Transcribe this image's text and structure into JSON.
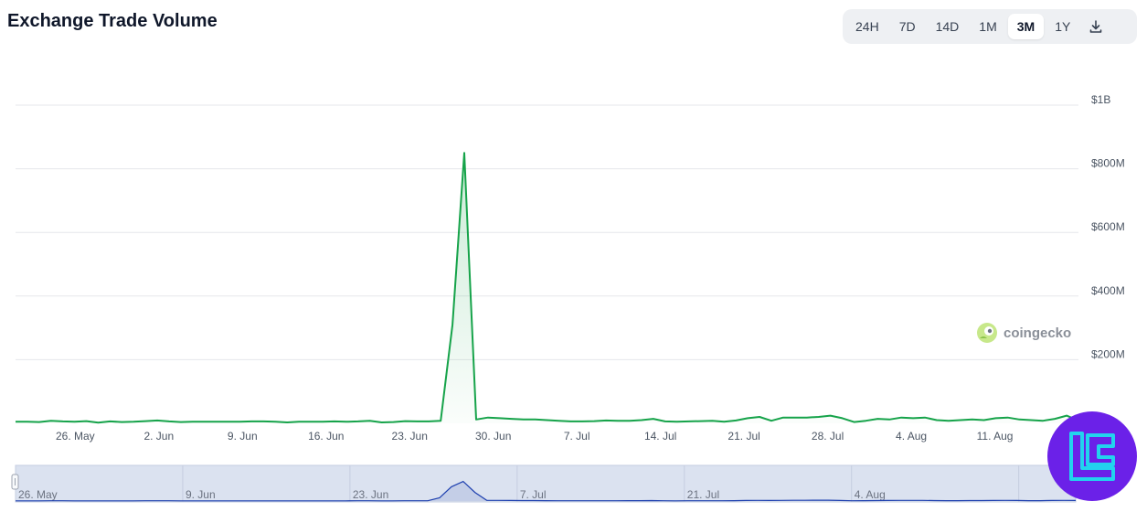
{
  "title": "Exchange Trade Volume",
  "range_buttons": [
    {
      "label": "24H",
      "active": false
    },
    {
      "label": "7D",
      "active": false
    },
    {
      "label": "14D",
      "active": false
    },
    {
      "label": "1M",
      "active": false
    },
    {
      "label": "3M",
      "active": true
    },
    {
      "label": "1Y",
      "active": false
    }
  ],
  "download_icon": "download-icon",
  "watermark": "coingecko",
  "colors": {
    "line": "#16a34a",
    "fill": "#16a34a",
    "grid": "#e5e7eb",
    "navigator_fill": "#dbe2f0",
    "navigator_line": "#1e40af",
    "badge": "#6b21e8"
  },
  "chart_data": {
    "type": "area",
    "title": "Exchange Trade Volume",
    "xlabel": "",
    "ylabel": "",
    "x_start": "2025-05-21",
    "x_end": "2025-08-18",
    "ylim": [
      0,
      1000000000
    ],
    "y_ticks": [
      "$200M",
      "$400M",
      "$600M",
      "$800M",
      "$1B"
    ],
    "y_tick_values": [
      200000000,
      400000000,
      600000000,
      800000000,
      1000000000
    ],
    "x_tick_labels": [
      "26. May",
      "2. Jun",
      "9. Jun",
      "16. Jun",
      "23. Jun",
      "30. Jun",
      "7. Jul",
      "14. Jul",
      "21. Jul",
      "28. Jul",
      "4. Aug",
      "11. Aug"
    ],
    "x_tick_dates": [
      "2025-05-26",
      "2025-06-02",
      "2025-06-09",
      "2025-06-16",
      "2025-06-23",
      "2025-06-30",
      "2025-07-07",
      "2025-07-14",
      "2025-07-21",
      "2025-07-28",
      "2025-08-04",
      "2025-08-11"
    ],
    "grid": true,
    "legend": "none",
    "series": [
      {
        "values": [
          5,
          5,
          4,
          8,
          6,
          5,
          7,
          2,
          6,
          4,
          5,
          7,
          9,
          6,
          4,
          5,
          5,
          5,
          5,
          5,
          6,
          6,
          5,
          3,
          5,
          5,
          5,
          6,
          5,
          6,
          8,
          3,
          4,
          7,
          6,
          6,
          8,
          310,
          850,
          12,
          18,
          16,
          14,
          12,
          12,
          10,
          8,
          6,
          6,
          7,
          9,
          8,
          8,
          10,
          14,
          6,
          5,
          6,
          7,
          8,
          5,
          9,
          16,
          20,
          8,
          18,
          18,
          18,
          20,
          24,
          16,
          4,
          8,
          14,
          12,
          18,
          16,
          18,
          10,
          8,
          10,
          12,
          10,
          16,
          18,
          12,
          10,
          8,
          14,
          24,
          8
        ]
      }
    ],
    "series_units": "millions USD",
    "navigator_x_tick_labels": [
      "26. May",
      "9. Jun",
      "23. Jun",
      "7. Jul",
      "21. Jul",
      "4. Aug"
    ]
  }
}
